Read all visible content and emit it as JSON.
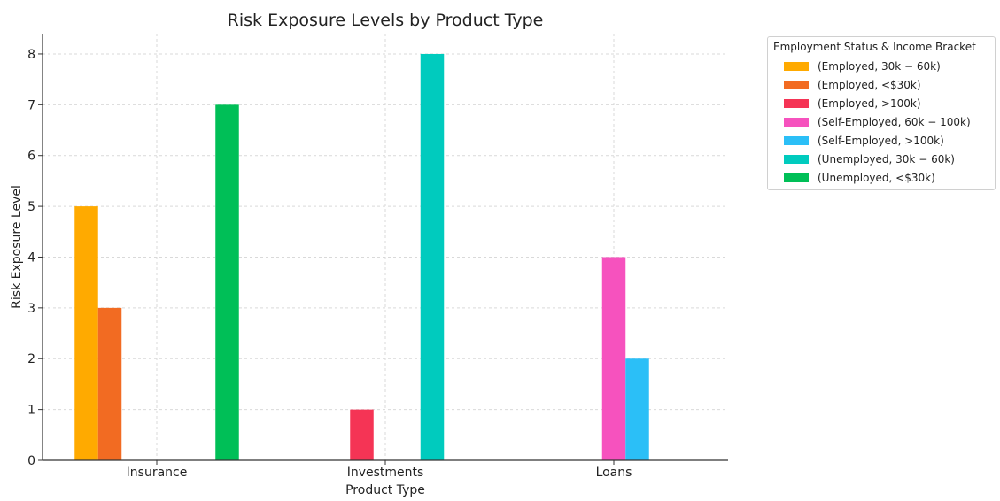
{
  "chart_data": {
    "type": "bar",
    "title": "Risk Exposure Levels by Product Type",
    "xlabel": "Product Type",
    "ylabel": "Risk Exposure Level",
    "categories": [
      "Insurance",
      "Investments",
      "Loans"
    ],
    "ylim": [
      0,
      8.4
    ],
    "yticks": [
      0,
      1,
      2,
      3,
      4,
      5,
      6,
      7,
      8
    ],
    "grid": true,
    "legend_title": "Employment Status & Income Bracket",
    "legend_position": "outside-top-right",
    "series": [
      {
        "name": "(Employed, 30k − 60k)",
        "color": "#FFAA00",
        "values": [
          5,
          0,
          0
        ]
      },
      {
        "name": "(Employed, <$30k)",
        "color": "#F26B22",
        "values": [
          3,
          0,
          0
        ]
      },
      {
        "name": "(Employed, >100k)",
        "color": "#F53455",
        "values": [
          0,
          1,
          0
        ]
      },
      {
        "name": "(Self-Employed, 60k − 100k)",
        "color": "#F652BE",
        "values": [
          0,
          0,
          4
        ]
      },
      {
        "name": "(Self-Employed, >100k)",
        "color": "#2BBFF7",
        "values": [
          0,
          0,
          2
        ]
      },
      {
        "name": "(Unemployed, 30k − 60k)",
        "color": "#00CBBE",
        "values": [
          0,
          8,
          0
        ]
      },
      {
        "name": "(Unemployed, <$30k)",
        "color": "#00BF57",
        "values": [
          7,
          0,
          0
        ]
      }
    ]
  }
}
